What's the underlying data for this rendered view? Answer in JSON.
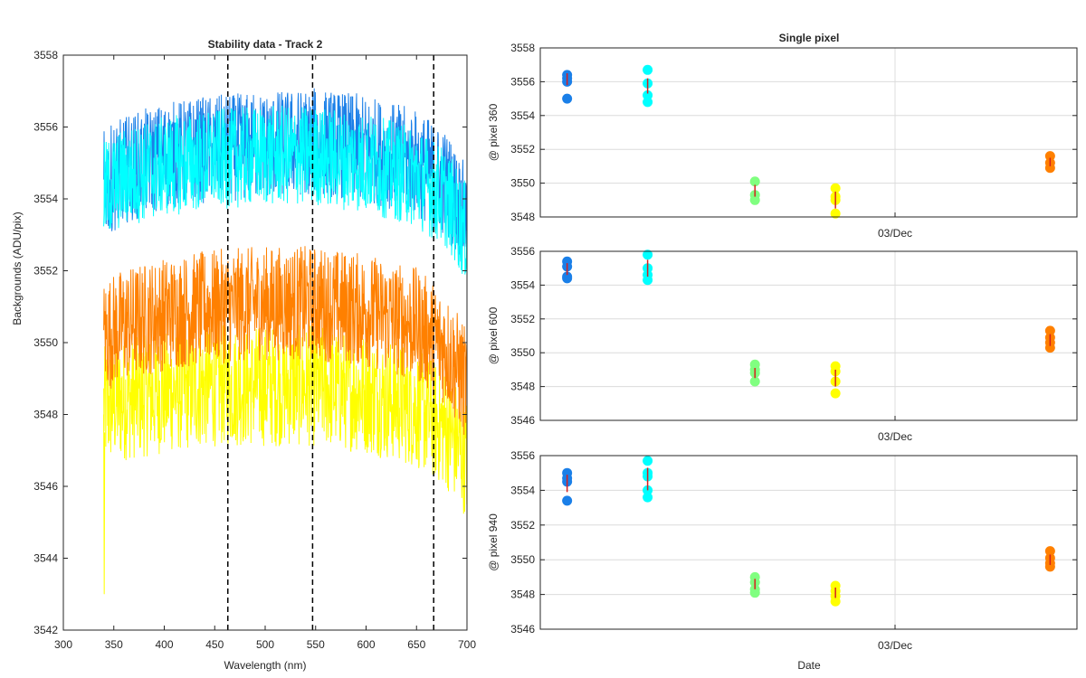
{
  "chart_data": [
    {
      "type": "line",
      "title": "Stability data - Track 2",
      "xlabel": "Wavelength (nm)",
      "ylabel": "Backgrounds (ADU/pix)",
      "xlim": [
        300,
        700
      ],
      "ylim": [
        3542,
        3558
      ],
      "xticks": [
        "300",
        "350",
        "400",
        "450",
        "500",
        "550",
        "600",
        "650",
        "700"
      ],
      "yticks": [
        "3542",
        "3544",
        "3546",
        "3548",
        "3550",
        "3552",
        "3554",
        "3556",
        "3558"
      ],
      "x_start": 340,
      "x_end": 700,
      "dashed_lines_x": [
        463,
        547,
        667
      ],
      "series": [
        {
          "color": "#1a7fe8",
          "center": [
            [
              340,
              3554.4
            ],
            [
              360,
              3554.8
            ],
            [
              400,
              3555.2
            ],
            [
              450,
              3555.4
            ],
            [
              500,
              3555.5
            ],
            [
              550,
              3555.6
            ],
            [
              600,
              3555.4
            ],
            [
              650,
              3555.0
            ],
            [
              680,
              3554.4
            ],
            [
              700,
              3553.4
            ]
          ],
          "noise": 1.5
        },
        {
          "color": "#00ffff",
          "center": [
            [
              340,
              3554.2
            ],
            [
              360,
              3554.6
            ],
            [
              400,
              3554.9
            ],
            [
              450,
              3555.1
            ],
            [
              500,
              3555.2
            ],
            [
              550,
              3555.2
            ],
            [
              600,
              3555.0
            ],
            [
              650,
              3554.6
            ],
            [
              680,
              3554.0
            ],
            [
              700,
              3553.0
            ]
          ],
          "noise": 1.4
        },
        {
          "color": "#ff8000",
          "center": [
            [
              340,
              3550.2
            ],
            [
              360,
              3550.5
            ],
            [
              400,
              3550.8
            ],
            [
              450,
              3551.0
            ],
            [
              500,
              3551.1
            ],
            [
              550,
              3551.1
            ],
            [
              600,
              3550.9
            ],
            [
              650,
              3550.5
            ],
            [
              680,
              3549.8
            ],
            [
              700,
              3548.8
            ]
          ],
          "noise": 1.6
        },
        {
          "color": "#ffff00",
          "center": [
            [
              340,
              3548.2
            ],
            [
              360,
              3548.4
            ],
            [
              400,
              3548.6
            ],
            [
              450,
              3548.8
            ],
            [
              500,
              3548.8
            ],
            [
              550,
              3548.8
            ],
            [
              600,
              3548.6
            ],
            [
              650,
              3548.2
            ],
            [
              680,
              3547.6
            ],
            [
              700,
              3546.8
            ]
          ],
          "noise": 1.7
        }
      ]
    },
    {
      "type": "scatter",
      "title": "Single pixel",
      "xlabel": "Date",
      "x_tick_label": "03/Dec",
      "grid": true,
      "subplots": [
        {
          "ylabel": "@ pixel 360",
          "ylim": [
            3548,
            3558
          ],
          "yticks": [
            "3548",
            "3550",
            "3552",
            "3554",
            "3556",
            "3558"
          ],
          "groups": [
            {
              "color": "#1a7fe8",
              "x": 0.05,
              "values": [
                3556.4,
                3556.2,
                3556.0,
                3555.0
              ],
              "bar": [
                3555.8,
                3556.5
              ]
            },
            {
              "color": "#00ffff",
              "x": 0.2,
              "values": [
                3556.7,
                3555.9,
                3555.2,
                3554.8
              ],
              "bar": [
                3555.3,
                3556.2
              ]
            },
            {
              "color": "#80ff80",
              "x": 0.4,
              "values": [
                3550.1,
                3549.3,
                3549.0
              ],
              "bar": [
                3549.2,
                3549.9
              ]
            },
            {
              "color": "#ffff00",
              "x": 0.55,
              "values": [
                3549.7,
                3549.2,
                3549.0,
                3548.2
              ],
              "bar": [
                3548.5,
                3549.5
              ]
            },
            {
              "color": "#ff8000",
              "x": 0.95,
              "values": [
                3551.6,
                3551.2,
                3550.9
              ],
              "bar": [
                3551.0,
                3551.5
              ]
            }
          ]
        },
        {
          "ylabel": "@ pixel 600",
          "ylim": [
            3546,
            3556
          ],
          "yticks": [
            "3546",
            "3548",
            "3550",
            "3552",
            "3554",
            "3556"
          ],
          "groups": [
            {
              "color": "#1a7fe8",
              "x": 0.05,
              "values": [
                3555.4,
                3555.1,
                3554.5,
                3554.4
              ],
              "bar": [
                3554.6,
                3555.3
              ]
            },
            {
              "color": "#00ffff",
              "x": 0.2,
              "values": [
                3555.8,
                3555.0,
                3554.6,
                3554.3
              ],
              "bar": [
                3554.5,
                3555.5
              ]
            },
            {
              "color": "#80ff80",
              "x": 0.4,
              "values": [
                3549.3,
                3549.0,
                3548.8,
                3548.3
              ],
              "bar": [
                3548.5,
                3549.1
              ]
            },
            {
              "color": "#ffff00",
              "x": 0.55,
              "values": [
                3549.2,
                3548.9,
                3548.3,
                3547.6
              ],
              "bar": [
                3548.0,
                3549.0
              ]
            },
            {
              "color": "#ff8000",
              "x": 0.95,
              "values": [
                3551.3,
                3550.9,
                3550.6,
                3550.3
              ],
              "bar": [
                3550.4,
                3551.1
              ]
            }
          ]
        },
        {
          "ylabel": "@ pixel 940",
          "ylim": [
            3546,
            3556
          ],
          "yticks": [
            "3546",
            "3548",
            "3550",
            "3552",
            "3554",
            "3556"
          ],
          "groups": [
            {
              "color": "#1a7fe8",
              "x": 0.05,
              "values": [
                3555.0,
                3554.7,
                3554.5,
                3553.4
              ],
              "bar": [
                3553.9,
                3554.9
              ]
            },
            {
              "color": "#00ffff",
              "x": 0.2,
              "values": [
                3555.7,
                3555.0,
                3554.8,
                3554.0,
                3553.6
              ],
              "bar": [
                3554.0,
                3555.3
              ]
            },
            {
              "color": "#80ff80",
              "x": 0.4,
              "values": [
                3549.0,
                3548.7,
                3548.3,
                3548.1
              ],
              "bar": [
                3548.3,
                3548.9
              ]
            },
            {
              "color": "#ffff00",
              "x": 0.55,
              "values": [
                3548.5,
                3548.2,
                3547.9,
                3547.6
              ],
              "bar": [
                3547.8,
                3548.4
              ]
            },
            {
              "color": "#ff8000",
              "x": 0.95,
              "values": [
                3550.5,
                3550.1,
                3549.8,
                3549.6
              ],
              "bar": [
                3549.7,
                3550.3
              ]
            }
          ]
        }
      ]
    }
  ]
}
